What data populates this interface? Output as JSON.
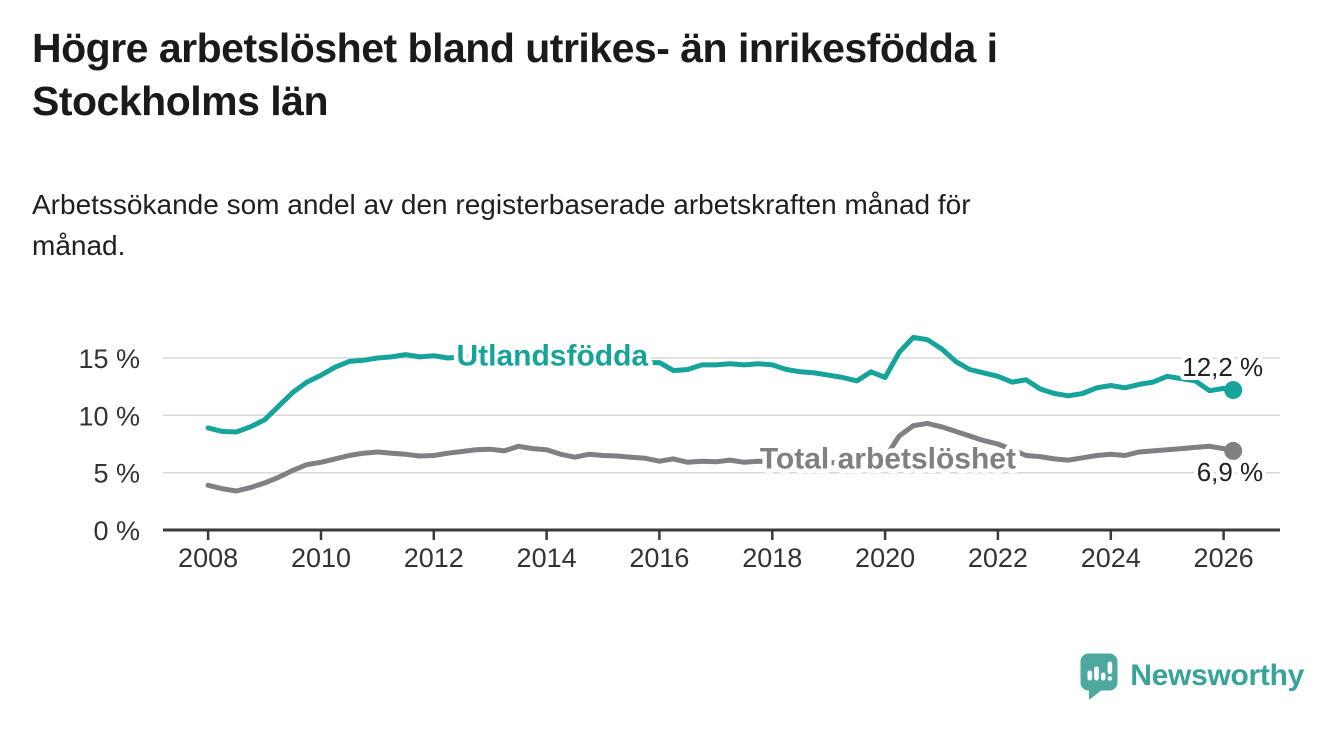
{
  "header": {
    "title": "Högre arbetslöshet bland utrikes- än inrikesfödda i\nStockholms län",
    "subtitle": "Arbetssökande som andel av den registerbaserade arbetskraften månad för\nmånad."
  },
  "footer": {
    "brand": "Newsworthy"
  },
  "colors": {
    "series_teal": "#16a49a",
    "series_gray": "#7f7f84",
    "logo_teal": "#4da89e",
    "brand_text_teal": "#38a39a",
    "title_text": "#1a1a1a",
    "axis_text": "#333333",
    "gridline": "#d8d8d8",
    "axis_line": "#3a3a3a",
    "value_label_text": "#222222"
  },
  "chart_data": {
    "type": "line",
    "title": "",
    "xlabel": "",
    "ylabel": "",
    "grid": "horizontal",
    "legend_position": "inline-on-line",
    "xlim": [
      2007.2,
      2027.0
    ],
    "ylim": [
      0,
      17.5
    ],
    "y_ticks": [
      0,
      5,
      10,
      15
    ],
    "y_tick_labels": [
      "0 %",
      "5 %",
      "10 %",
      "15 %"
    ],
    "x_ticks": [
      2008,
      2010,
      2012,
      2014,
      2016,
      2018,
      2020,
      2022,
      2024,
      2026
    ],
    "x_tick_labels": [
      "2008",
      "2010",
      "2012",
      "2014",
      "2016",
      "2018",
      "2020",
      "2022",
      "2024",
      "2026"
    ],
    "x": [
      2008.0,
      2008.25,
      2008.5,
      2008.75,
      2009.0,
      2009.25,
      2009.5,
      2009.75,
      2010.0,
      2010.25,
      2010.5,
      2010.75,
      2011.0,
      2011.25,
      2011.5,
      2011.75,
      2012.0,
      2012.25,
      2012.5,
      2012.75,
      2013.0,
      2013.25,
      2013.5,
      2013.75,
      2014.0,
      2014.25,
      2014.5,
      2014.75,
      2015.0,
      2015.25,
      2015.5,
      2015.75,
      2016.0,
      2016.25,
      2016.5,
      2016.75,
      2017.0,
      2017.25,
      2017.5,
      2017.75,
      2018.0,
      2018.25,
      2018.5,
      2018.75,
      2019.0,
      2019.25,
      2019.5,
      2019.75,
      2020.0,
      2020.25,
      2020.5,
      2020.75,
      2021.0,
      2021.25,
      2021.5,
      2021.75,
      2022.0,
      2022.25,
      2022.5,
      2022.75,
      2023.0,
      2023.25,
      2023.5,
      2023.75,
      2024.0,
      2024.25,
      2024.5,
      2024.75,
      2025.0,
      2025.25,
      2025.5,
      2025.75,
      2026.0,
      2026.17
    ],
    "series": [
      {
        "id": "utlandsfodda",
        "name": "Utlandsfödda",
        "color": "#16a49a",
        "end_label": "12,2 %",
        "end_label_position": "above",
        "inline_label": {
          "text": "Utlandsfödda",
          "x": 2014.1,
          "y": 14.35
        },
        "values": [
          8.9,
          8.6,
          8.55,
          9.0,
          9.6,
          10.8,
          12.0,
          12.9,
          13.5,
          14.2,
          14.7,
          14.8,
          15.0,
          15.1,
          15.3,
          15.1,
          15.2,
          15.0,
          15.1,
          15.05,
          15.1,
          15.2,
          15.25,
          15.15,
          15.05,
          15.0,
          14.9,
          14.85,
          14.8,
          14.75,
          14.65,
          14.6,
          14.6,
          13.9,
          14.0,
          14.4,
          14.4,
          14.5,
          14.4,
          14.5,
          14.4,
          14.0,
          13.8,
          13.7,
          13.5,
          13.3,
          13.0,
          13.8,
          13.3,
          15.5,
          16.8,
          16.6,
          15.8,
          14.7,
          14.0,
          13.7,
          13.4,
          12.9,
          13.1,
          12.3,
          11.9,
          11.7,
          11.9,
          12.4,
          12.6,
          12.4,
          12.7,
          12.9,
          13.4,
          13.2,
          13.0,
          12.15,
          12.35,
          12.2
        ]
      },
      {
        "id": "total",
        "name": "Total arbetslöshet",
        "color": "#7f7f84",
        "end_label": "6,9 %",
        "end_label_position": "below",
        "inline_label": {
          "text": "Total arbetslöshet",
          "x": 2020.05,
          "y": 5.35
        },
        "values": [
          3.9,
          3.6,
          3.4,
          3.7,
          4.1,
          4.6,
          5.2,
          5.7,
          5.9,
          6.2,
          6.5,
          6.7,
          6.8,
          6.7,
          6.6,
          6.45,
          6.5,
          6.7,
          6.85,
          7.0,
          7.05,
          6.9,
          7.3,
          7.1,
          7.0,
          6.6,
          6.35,
          6.6,
          6.5,
          6.45,
          6.35,
          6.25,
          6.0,
          6.2,
          5.9,
          6.0,
          5.95,
          6.1,
          5.9,
          6.0,
          5.95,
          5.85,
          5.9,
          5.8,
          5.85,
          5.9,
          6.0,
          6.05,
          6.3,
          8.2,
          9.1,
          9.3,
          9.0,
          8.6,
          8.2,
          7.8,
          7.5,
          7.0,
          6.5,
          6.4,
          6.2,
          6.1,
          6.3,
          6.5,
          6.6,
          6.5,
          6.8,
          6.9,
          7.0,
          7.1,
          7.2,
          7.3,
          7.1,
          6.9
        ]
      }
    ]
  }
}
